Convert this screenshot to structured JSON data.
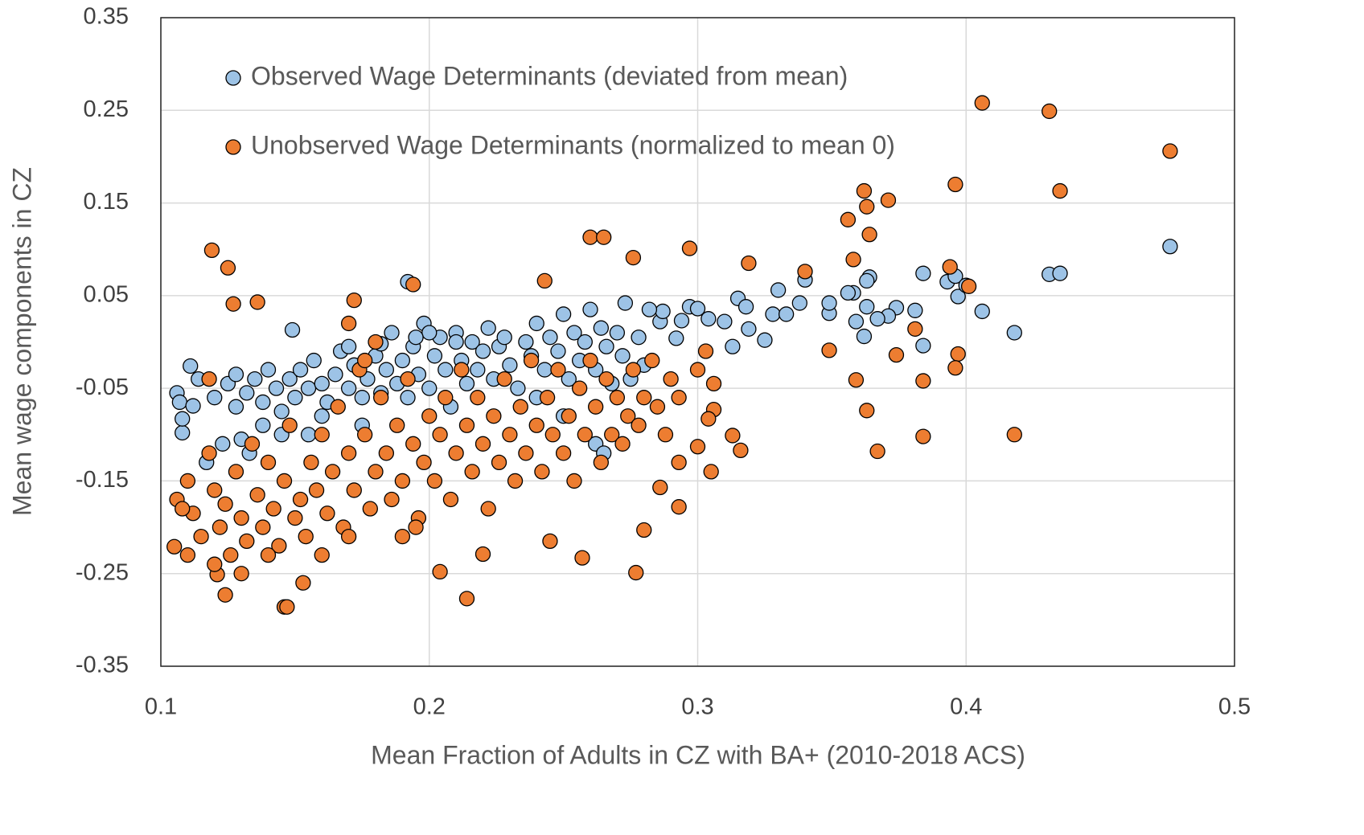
{
  "chart_data": {
    "type": "scatter",
    "x_label": "Mean Fraction of Adults in CZ with BA+ (2010-2018 ACS)",
    "y_label": "Mean wage components in CZ",
    "xlim": [
      0.1,
      0.5
    ],
    "ylim": [
      -0.35,
      0.35
    ],
    "xticks": [
      0.1,
      0.2,
      0.3,
      0.4,
      0.5
    ],
    "yticks": [
      -0.35,
      -0.25,
      -0.15,
      -0.05,
      0.05,
      0.15,
      0.25,
      0.35
    ],
    "grid": true,
    "legend": "upper left",
    "series": [
      {
        "name": "Observed Wage Determinants (deviated from mean)",
        "color": "#9dc3e6",
        "x": [
          0.476,
          0.431,
          0.435,
          0.406,
          0.418,
          0.393,
          0.396,
          0.397,
          0.4,
          0.384,
          0.381,
          0.384,
          0.374,
          0.371,
          0.367,
          0.363,
          0.362,
          0.359,
          0.358,
          0.356,
          0.364,
          0.363,
          0.349,
          0.349,
          0.34,
          0.33,
          0.338,
          0.319,
          0.313,
          0.325,
          0.328,
          0.333,
          0.315,
          0.318,
          0.31,
          0.304,
          0.297,
          0.3,
          0.294,
          0.286,
          0.292,
          0.287,
          0.273,
          0.282,
          0.192,
          0.149,
          0.111,
          0.108,
          0.117,
          0.106,
          0.107,
          0.108,
          0.112,
          0.114,
          0.123,
          0.13,
          0.133,
          0.138,
          0.128,
          0.12,
          0.125,
          0.128,
          0.132,
          0.135,
          0.138,
          0.14,
          0.143,
          0.145,
          0.148,
          0.15,
          0.152,
          0.155,
          0.157,
          0.16,
          0.162,
          0.165,
          0.167,
          0.17,
          0.172,
          0.175,
          0.177,
          0.18,
          0.182,
          0.184,
          0.186,
          0.188,
          0.19,
          0.192,
          0.194,
          0.196,
          0.198,
          0.2,
          0.202,
          0.204,
          0.206,
          0.208,
          0.21,
          0.212,
          0.214,
          0.216,
          0.218,
          0.22,
          0.222,
          0.224,
          0.226,
          0.228,
          0.23,
          0.233,
          0.236,
          0.238,
          0.24,
          0.243,
          0.245,
          0.248,
          0.25,
          0.252,
          0.254,
          0.256,
          0.258,
          0.26,
          0.262,
          0.264,
          0.266,
          0.268,
          0.27,
          0.272,
          0.275,
          0.278,
          0.28,
          0.262,
          0.265,
          0.25,
          0.24,
          0.16,
          0.175,
          0.155,
          0.145,
          0.17,
          0.182,
          0.2,
          0.21,
          0.195
        ],
        "values": [
          0.103,
          0.073,
          0.074,
          0.033,
          0.01,
          0.065,
          0.071,
          0.049,
          0.061,
          0.074,
          0.034,
          -0.004,
          0.037,
          0.028,
          0.025,
          0.038,
          0.006,
          0.022,
          0.053,
          0.053,
          0.07,
          0.066,
          0.031,
          0.042,
          0.067,
          0.056,
          0.042,
          0.014,
          -0.005,
          0.002,
          0.03,
          0.03,
          0.047,
          0.038,
          0.022,
          0.025,
          0.038,
          0.036,
          0.023,
          0.022,
          0.004,
          0.033,
          0.042,
          0.035,
          0.065,
          0.013,
          -0.026,
          -0.098,
          -0.13,
          -0.055,
          -0.065,
          -0.083,
          -0.069,
          -0.04,
          -0.11,
          -0.105,
          -0.12,
          -0.09,
          -0.07,
          -0.06,
          -0.045,
          -0.035,
          -0.055,
          -0.04,
          -0.065,
          -0.03,
          -0.05,
          -0.075,
          -0.04,
          -0.06,
          -0.03,
          -0.05,
          -0.02,
          -0.045,
          -0.065,
          -0.035,
          -0.01,
          -0.05,
          -0.025,
          -0.06,
          -0.04,
          -0.015,
          -0.055,
          -0.03,
          0.01,
          -0.045,
          -0.02,
          -0.06,
          -0.005,
          -0.035,
          0.02,
          -0.05,
          -0.015,
          0.005,
          -0.03,
          -0.07,
          0.01,
          -0.02,
          -0.045,
          0.0,
          -0.03,
          -0.01,
          0.015,
          -0.04,
          -0.005,
          0.005,
          -0.025,
          -0.05,
          0.0,
          -0.015,
          0.02,
          -0.03,
          0.005,
          -0.01,
          0.03,
          -0.04,
          0.01,
          -0.02,
          0.0,
          0.035,
          -0.03,
          0.015,
          -0.005,
          -0.045,
          0.01,
          -0.015,
          -0.04,
          0.005,
          -0.025,
          -0.11,
          -0.12,
          -0.08,
          -0.06,
          -0.08,
          -0.09,
          -0.1,
          -0.1,
          -0.005,
          -0.002,
          0.01,
          0.0,
          0.005
        ]
      },
      {
        "name": "Unobserved Wage Determinants (normalized to mean 0)",
        "color": "#ed7d31",
        "x": [
          0.406,
          0.431,
          0.476,
          0.396,
          0.435,
          0.362,
          0.371,
          0.356,
          0.364,
          0.363,
          0.119,
          0.297,
          0.125,
          0.26,
          0.265,
          0.276,
          0.394,
          0.358,
          0.401,
          0.34,
          0.319,
          0.194,
          0.243,
          0.127,
          0.136,
          0.363,
          0.367,
          0.384,
          0.418,
          0.384,
          0.397,
          0.396,
          0.359,
          0.349,
          0.381,
          0.374,
          0.316,
          0.313,
          0.306,
          0.305,
          0.304,
          0.3,
          0.293,
          0.293,
          0.286,
          0.28,
          0.277,
          0.214,
          0.204,
          0.124,
          0.121,
          0.146,
          0.147,
          0.153,
          0.105,
          0.106,
          0.22,
          0.245,
          0.257,
          0.11,
          0.112,
          0.115,
          0.118,
          0.12,
          0.122,
          0.124,
          0.126,
          0.128,
          0.13,
          0.132,
          0.134,
          0.136,
          0.138,
          0.14,
          0.142,
          0.144,
          0.146,
          0.148,
          0.15,
          0.152,
          0.154,
          0.156,
          0.158,
          0.16,
          0.162,
          0.164,
          0.166,
          0.168,
          0.17,
          0.172,
          0.174,
          0.176,
          0.178,
          0.18,
          0.182,
          0.184,
          0.186,
          0.188,
          0.19,
          0.192,
          0.194,
          0.196,
          0.198,
          0.2,
          0.202,
          0.204,
          0.206,
          0.208,
          0.21,
          0.212,
          0.214,
          0.216,
          0.218,
          0.22,
          0.222,
          0.224,
          0.226,
          0.228,
          0.23,
          0.232,
          0.234,
          0.236,
          0.238,
          0.24,
          0.242,
          0.244,
          0.246,
          0.248,
          0.25,
          0.252,
          0.254,
          0.256,
          0.258,
          0.26,
          0.262,
          0.264,
          0.266,
          0.268,
          0.27,
          0.272,
          0.274,
          0.276,
          0.278,
          0.28,
          0.283,
          0.285,
          0.288,
          0.29,
          0.293,
          0.3,
          0.303,
          0.306,
          0.12,
          0.13,
          0.14,
          0.16,
          0.17,
          0.19,
          0.195,
          0.176,
          0.17,
          0.172,
          0.18,
          0.11,
          0.108,
          0.118
        ],
        "values": [
          0.258,
          0.249,
          0.206,
          0.17,
          0.163,
          0.163,
          0.153,
          0.132,
          0.116,
          0.146,
          0.099,
          0.101,
          0.08,
          0.113,
          0.113,
          0.091,
          0.081,
          0.089,
          0.06,
          0.076,
          0.085,
          0.062,
          0.066,
          0.041,
          0.043,
          -0.074,
          -0.118,
          -0.102,
          -0.1,
          -0.042,
          -0.013,
          -0.028,
          -0.041,
          -0.009,
          0.014,
          -0.014,
          -0.117,
          -0.101,
          -0.073,
          -0.14,
          -0.083,
          -0.113,
          -0.178,
          -0.13,
          -0.157,
          -0.203,
          -0.249,
          -0.277,
          -0.248,
          -0.273,
          -0.251,
          -0.286,
          -0.286,
          -0.26,
          -0.221,
          -0.17,
          -0.229,
          -0.215,
          -0.233,
          -0.15,
          -0.185,
          -0.21,
          -0.12,
          -0.16,
          -0.2,
          -0.175,
          -0.23,
          -0.14,
          -0.19,
          -0.215,
          -0.11,
          -0.165,
          -0.2,
          -0.13,
          -0.18,
          -0.22,
          -0.15,
          -0.09,
          -0.19,
          -0.17,
          -0.21,
          -0.13,
          -0.16,
          -0.1,
          -0.185,
          -0.14,
          -0.07,
          -0.2,
          -0.12,
          -0.16,
          -0.03,
          -0.1,
          -0.18,
          -0.14,
          -0.06,
          -0.12,
          -0.17,
          -0.09,
          -0.15,
          -0.04,
          -0.11,
          -0.19,
          -0.13,
          -0.08,
          -0.15,
          -0.1,
          -0.06,
          -0.17,
          -0.12,
          -0.03,
          -0.09,
          -0.14,
          -0.06,
          -0.11,
          -0.18,
          -0.08,
          -0.13,
          -0.04,
          -0.1,
          -0.15,
          -0.07,
          -0.12,
          -0.02,
          -0.09,
          -0.14,
          -0.06,
          -0.1,
          -0.03,
          -0.12,
          -0.08,
          -0.15,
          -0.05,
          -0.1,
          -0.02,
          -0.07,
          -0.13,
          -0.04,
          -0.1,
          -0.06,
          -0.11,
          -0.08,
          -0.03,
          -0.09,
          -0.06,
          -0.02,
          -0.07,
          -0.1,
          -0.04,
          -0.06,
          -0.03,
          -0.01,
          -0.045,
          -0.24,
          -0.25,
          -0.23,
          -0.23,
          -0.21,
          -0.21,
          -0.2,
          -0.02,
          0.02,
          0.045,
          0.0,
          -0.23,
          -0.18,
          -0.04
        ]
      }
    ]
  }
}
